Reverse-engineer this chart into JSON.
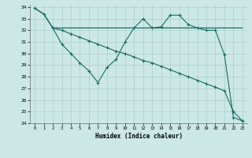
{
  "xlabel": "Humidex (Indice chaleur)",
  "bg_color": "#cce8e6",
  "grid_color": "#aacfcc",
  "line_color": "#1a6b60",
  "xlim": [
    -0.5,
    23.5
  ],
  "ylim": [
    24,
    34.2
  ],
  "xticks": [
    0,
    1,
    2,
    3,
    4,
    5,
    6,
    7,
    8,
    9,
    10,
    11,
    12,
    13,
    14,
    15,
    16,
    17,
    18,
    19,
    20,
    21,
    22,
    23
  ],
  "yticks": [
    24,
    25,
    26,
    27,
    28,
    29,
    30,
    31,
    32,
    33,
    34
  ],
  "line1_x": [
    0,
    1,
    2,
    23
  ],
  "line1_y": [
    33.9,
    33.4,
    32.2,
    32.2
  ],
  "line2_x": [
    2,
    3,
    4,
    5,
    6,
    7,
    8,
    9,
    10,
    11,
    12,
    13,
    14,
    15,
    16,
    17,
    18,
    19,
    20,
    21,
    22,
    23
  ],
  "line2_y": [
    32.2,
    30.8,
    30.0,
    29.2,
    28.5,
    27.5,
    28.8,
    29.5,
    31.0,
    32.2,
    33.0,
    32.2,
    32.3,
    33.3,
    33.3,
    32.5,
    32.2,
    32.0,
    32.0,
    29.9,
    24.5,
    24.2
  ],
  "line3_x": [
    0,
    1,
    2,
    3,
    4,
    5,
    6,
    7,
    8,
    9,
    10,
    11,
    12,
    13,
    14,
    15,
    16,
    17,
    18,
    19,
    20,
    21,
    22,
    23
  ],
  "line3_y": [
    33.9,
    33.4,
    32.2,
    32.0,
    31.7,
    31.4,
    31.1,
    30.8,
    30.5,
    30.2,
    30.0,
    29.7,
    29.4,
    29.2,
    28.9,
    28.6,
    28.3,
    28.0,
    27.7,
    27.4,
    27.1,
    26.8,
    25.0,
    24.2
  ]
}
